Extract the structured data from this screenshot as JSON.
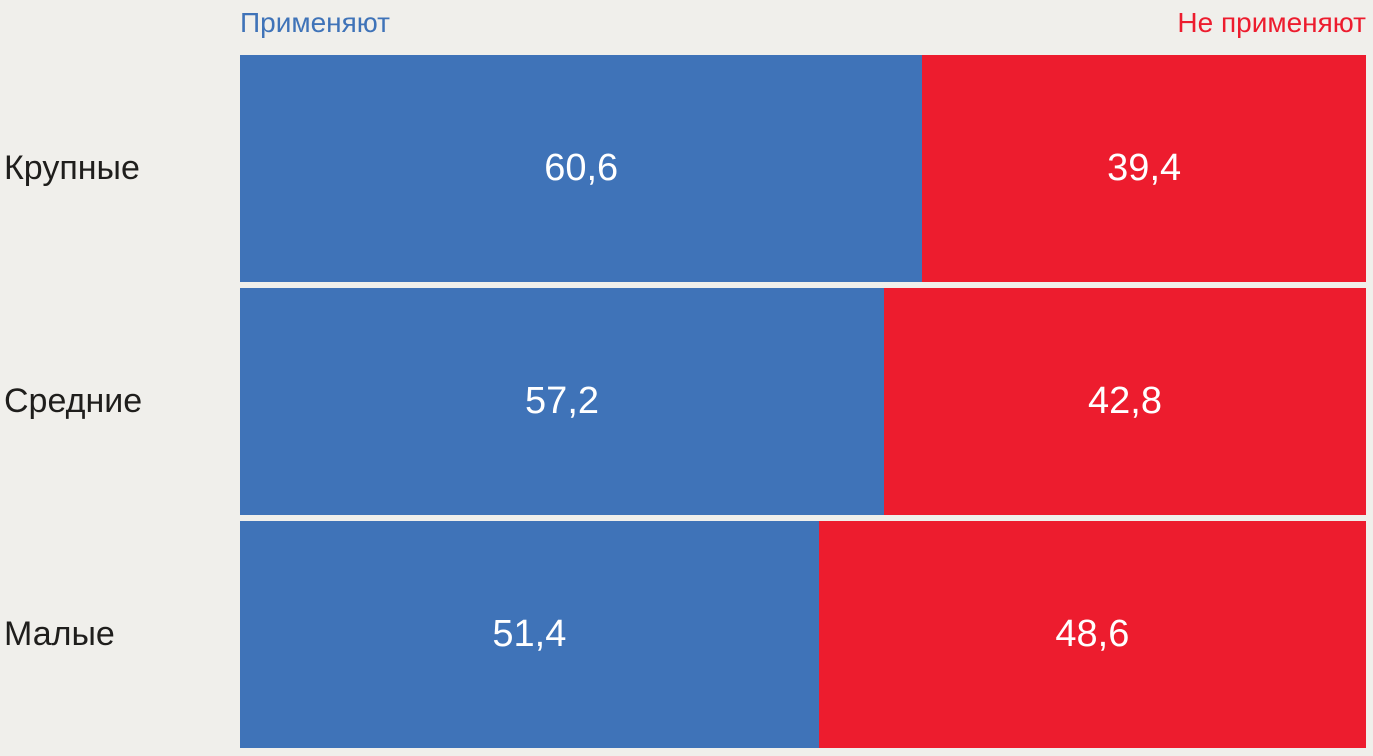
{
  "colors": {
    "background": "#f0efeb",
    "category_text": "#1f1e1c",
    "value_text": "#ffffff",
    "apply_blue": "#3f73b8",
    "not_apply_red": "#ed1c2e"
  },
  "chart_data": {
    "type": "bar",
    "orientation": "horizontal",
    "stacked": true,
    "unit": "percent",
    "title": "",
    "xlabel": "",
    "ylabel": "",
    "xlim": [
      0,
      100
    ],
    "grid": false,
    "legend_position": "top",
    "categories": [
      "Крупные",
      "Средние",
      "Малые"
    ],
    "series": [
      {
        "name": "Применяют",
        "color": "#3f73b8",
        "values": [
          60.6,
          57.2,
          51.4
        ],
        "value_labels": [
          "60,6",
          "57,2",
          "51,4"
        ]
      },
      {
        "name": "Не применяют",
        "color": "#ed1c2e",
        "values": [
          39.4,
          42.8,
          48.6
        ],
        "value_labels": [
          "39,4",
          "42,8",
          "48,6"
        ]
      }
    ]
  }
}
